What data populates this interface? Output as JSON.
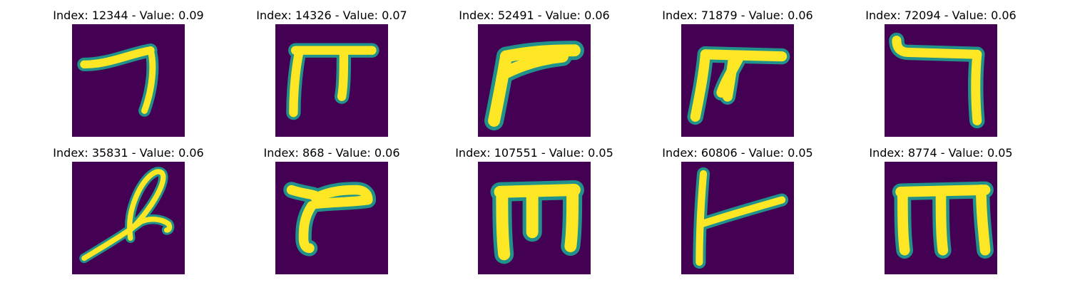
{
  "figure": {
    "background": "#ffffff",
    "colormap": {
      "name": "viridis",
      "low": "#440154",
      "mid": "#21918c",
      "high": "#fde725"
    },
    "panels": [
      {
        "title": "Index: 12344 - Value: 0.09",
        "index": 12344,
        "value": 0.09
      },
      {
        "title": "Index: 14326 - Value: 0.07",
        "index": 14326,
        "value": 0.07
      },
      {
        "title": "Index: 52491 - Value: 0.06",
        "index": 52491,
        "value": 0.06
      },
      {
        "title": "Index: 71879 - Value: 0.06",
        "index": 71879,
        "value": 0.06
      },
      {
        "title": "Index: 72094 - Value: 0.06",
        "index": 72094,
        "value": 0.06
      },
      {
        "title": "Index: 35831 - Value: 0.06",
        "index": 35831,
        "value": 0.06
      },
      {
        "title": "Index: 868 - Value: 0.06",
        "index": 868,
        "value": 0.06
      },
      {
        "title": "Index: 107551 - Value: 0.05",
        "index": 107551,
        "value": 0.05
      },
      {
        "title": "Index: 60806 - Value: 0.05",
        "index": 60806,
        "value": 0.05
      },
      {
        "title": "Index: 8774 - Value: 0.05",
        "index": 8774,
        "value": 0.05
      }
    ]
  }
}
